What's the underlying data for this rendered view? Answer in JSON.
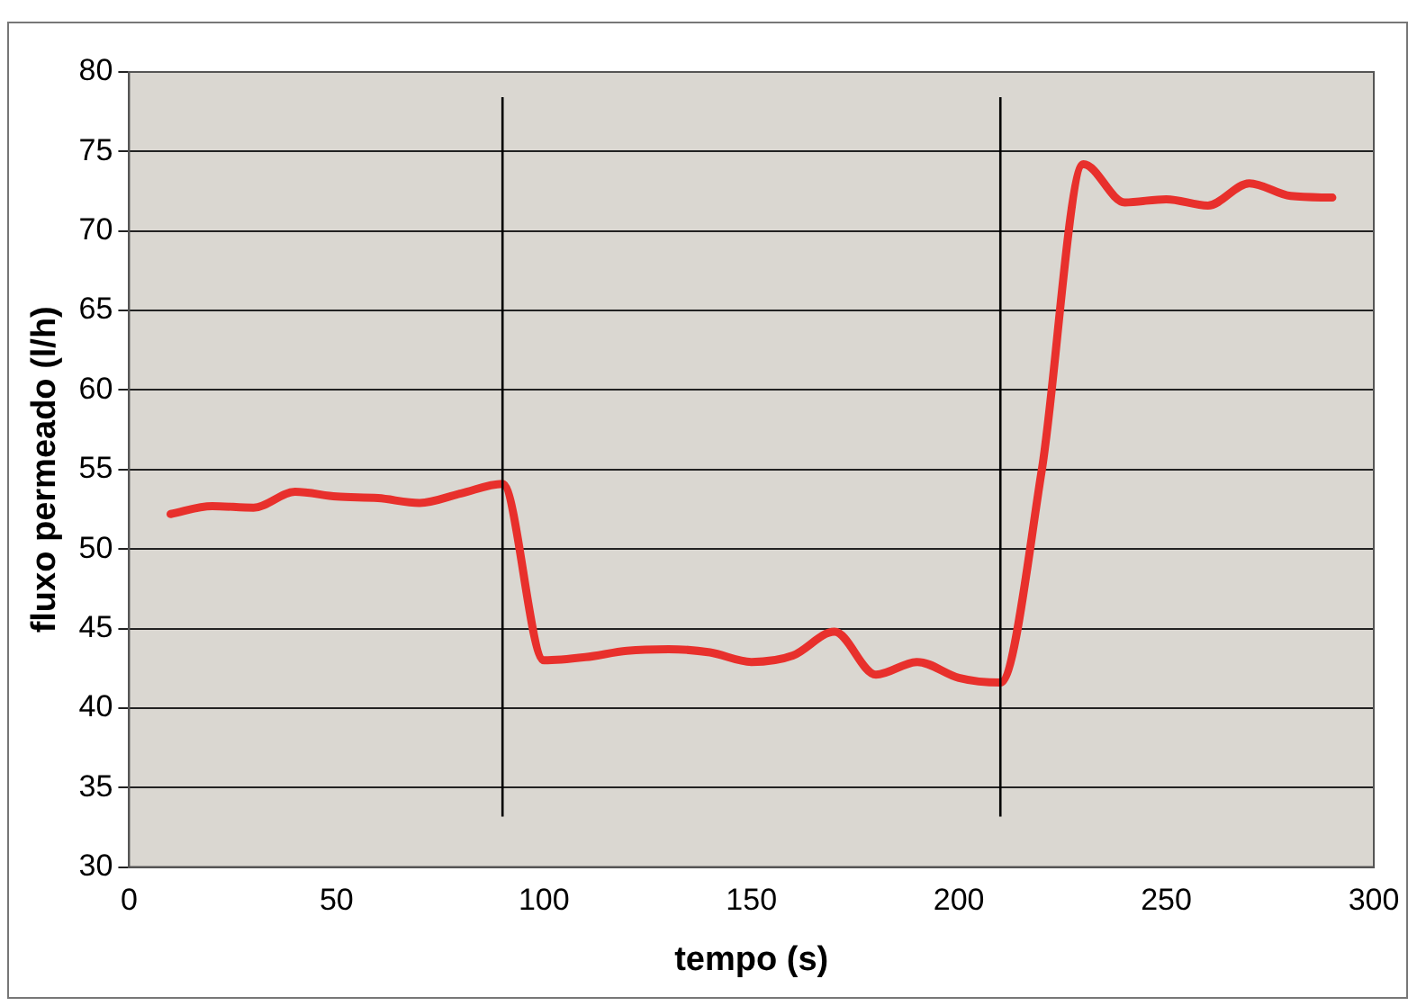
{
  "chart_data": {
    "type": "line",
    "xlabel": "tempo (s)",
    "ylabel": "fluxo permeado (l/h)",
    "x": [
      10,
      20,
      30,
      40,
      50,
      60,
      70,
      80,
      90,
      100,
      110,
      120,
      130,
      140,
      150,
      160,
      170,
      180,
      190,
      200,
      210,
      220,
      230,
      240,
      250,
      260,
      270,
      280,
      290
    ],
    "series": [
      {
        "color": "#e8302c",
        "values": [
          52.2,
          52.7,
          52.6,
          53.6,
          53.3,
          53.2,
          52.9,
          53.5,
          54.1,
          43.0,
          43.2,
          43.6,
          43.7,
          43.5,
          42.9,
          43.3,
          44.8,
          42.1,
          42.9,
          41.9,
          41.6,
          55,
          74.2,
          71.8,
          72.0,
          71.6,
          73.0,
          72.2,
          72.1
        ]
      }
    ],
    "xlim": [
      0,
      300
    ],
    "xticks": [
      0,
      50,
      100,
      150,
      200,
      250,
      300
    ],
    "ylim": [
      30,
      80
    ],
    "yticks": [
      30,
      35,
      40,
      45,
      50,
      55,
      60,
      65,
      70,
      75,
      80
    ],
    "grid": "y",
    "legend": false,
    "marker": "none",
    "line_style": "solid",
    "ref_lines": [
      {
        "axis": "x",
        "value": 90,
        "color": "#000000"
      },
      {
        "axis": "x",
        "value": 210,
        "color": "#000000"
      }
    ]
  }
}
